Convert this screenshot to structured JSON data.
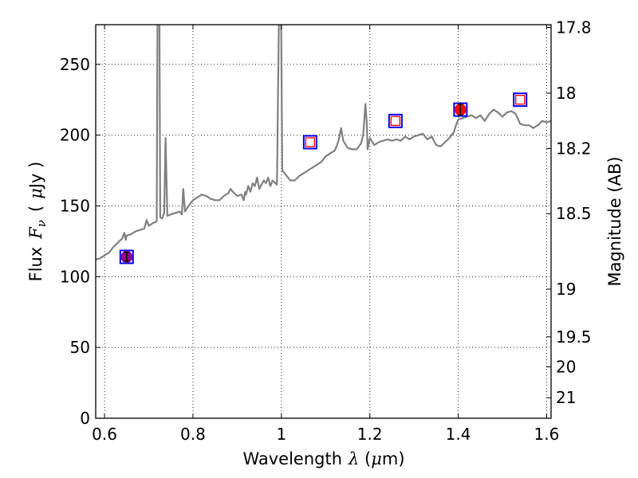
{
  "chart_data": {
    "type": "line",
    "xlabel": "Wavelength",
    "xlabel_symbol": "λ",
    "xlabel_unit_open": " (",
    "xlabel_unit_mu": "μ",
    "xlabel_unit_rest": "m)",
    "ylabel": "Flux",
    "ylabel_symbol_main": "F",
    "ylabel_symbol_sub": "ν",
    "ylabel_unit_open": "(",
    "ylabel_unit_mu": "μ",
    "ylabel_unit_rest": "Jy )",
    "y2label": "Magnitude (AB)",
    "xlim": [
      0.58,
      1.61
    ],
    "ylim": [
      0,
      278
    ],
    "grid": true,
    "x_ticks": [
      0.6,
      0.8,
      1.0,
      1.2,
      1.4,
      1.6
    ],
    "x_tick_labels": [
      "0.6",
      "0.8",
      "1",
      "1.2",
      "1.4",
      "1.6"
    ],
    "y_ticks": [
      0,
      50,
      100,
      150,
      200,
      250
    ],
    "y_tick_labels": [
      "0",
      "50",
      "100",
      "150",
      "200",
      "250"
    ],
    "y2_ticks": [
      {
        "label": "17.8",
        "flux": 276.0
      },
      {
        "label": "18",
        "flux": 229.6
      },
      {
        "label": "18.2",
        "flux": 190.5
      },
      {
        "label": "18.5",
        "flux": 144.5
      },
      {
        "label": "19",
        "flux": 91.2
      },
      {
        "label": "19.5",
        "flux": 57.5
      },
      {
        "label": "20",
        "flux": 36.3
      },
      {
        "label": "21",
        "flux": 14.5
      }
    ],
    "spectrum_color": "#808080",
    "spectrum": [
      [
        0.58,
        112
      ],
      [
        0.59,
        113
      ],
      [
        0.6,
        115
      ],
      [
        0.61,
        117
      ],
      [
        0.62,
        121
      ],
      [
        0.63,
        124
      ],
      [
        0.64,
        127
      ],
      [
        0.645,
        131
      ],
      [
        0.648,
        126
      ],
      [
        0.65,
        129
      ],
      [
        0.66,
        130
      ],
      [
        0.67,
        132
      ],
      [
        0.68,
        133
      ],
      [
        0.69,
        134
      ],
      [
        0.695,
        140
      ],
      [
        0.7,
        136
      ],
      [
        0.71,
        138
      ],
      [
        0.718,
        139
      ],
      [
        0.72,
        300
      ],
      [
        0.724,
        300
      ],
      [
        0.726,
        142
      ],
      [
        0.73,
        141
      ],
      [
        0.735,
        145
      ],
      [
        0.738,
        198
      ],
      [
        0.742,
        143
      ],
      [
        0.75,
        144
      ],
      [
        0.76,
        145
      ],
      [
        0.77,
        146
      ],
      [
        0.775,
        144
      ],
      [
        0.778,
        162
      ],
      [
        0.782,
        146
      ],
      [
        0.79,
        150
      ],
      [
        0.8,
        154
      ],
      [
        0.81,
        156
      ],
      [
        0.82,
        158
      ],
      [
        0.83,
        157
      ],
      [
        0.84,
        155
      ],
      [
        0.85,
        154
      ],
      [
        0.86,
        154
      ],
      [
        0.87,
        157
      ],
      [
        0.88,
        159
      ],
      [
        0.885,
        162
      ],
      [
        0.89,
        160
      ],
      [
        0.9,
        157
      ],
      [
        0.91,
        158
      ],
      [
        0.915,
        154
      ],
      [
        0.918,
        160
      ],
      [
        0.92,
        158
      ],
      [
        0.925,
        164
      ],
      [
        0.93,
        160
      ],
      [
        0.935,
        166
      ],
      [
        0.94,
        164
      ],
      [
        0.945,
        170
      ],
      [
        0.95,
        162
      ],
      [
        0.96,
        168
      ],
      [
        0.965,
        166
      ],
      [
        0.97,
        170
      ],
      [
        0.975,
        164
      ],
      [
        0.98,
        168
      ],
      [
        0.99,
        165
      ],
      [
        0.995,
        300
      ],
      [
        0.999,
        300
      ],
      [
        1.002,
        175
      ],
      [
        1.01,
        172
      ],
      [
        1.02,
        168
      ],
      [
        1.03,
        168
      ],
      [
        1.04,
        171
      ],
      [
        1.05,
        173
      ],
      [
        1.06,
        175
      ],
      [
        1.07,
        177
      ],
      [
        1.08,
        179
      ],
      [
        1.09,
        181
      ],
      [
        1.1,
        185
      ],
      [
        1.11,
        187
      ],
      [
        1.12,
        189
      ],
      [
        1.125,
        192
      ],
      [
        1.13,
        197
      ],
      [
        1.135,
        205
      ],
      [
        1.14,
        196
      ],
      [
        1.15,
        191
      ],
      [
        1.16,
        190
      ],
      [
        1.17,
        190
      ],
      [
        1.18,
        194
      ],
      [
        1.185,
        200
      ],
      [
        1.19,
        222
      ],
      [
        1.193,
        210
      ],
      [
        1.195,
        190
      ],
      [
        1.2,
        198
      ],
      [
        1.21,
        193
      ],
      [
        1.22,
        195
      ],
      [
        1.23,
        196
      ],
      [
        1.24,
        197
      ],
      [
        1.25,
        196
      ],
      [
        1.26,
        197
      ],
      [
        1.27,
        196
      ],
      [
        1.28,
        199
      ],
      [
        1.29,
        197
      ],
      [
        1.3,
        199
      ],
      [
        1.31,
        200
      ],
      [
        1.32,
        201
      ],
      [
        1.33,
        197
      ],
      [
        1.34,
        199
      ],
      [
        1.35,
        193
      ],
      [
        1.36,
        192
      ],
      [
        1.37,
        195
      ],
      [
        1.38,
        198
      ],
      [
        1.39,
        202
      ],
      [
        1.395,
        207
      ],
      [
        1.4,
        211
      ],
      [
        1.41,
        212
      ],
      [
        1.42,
        213
      ],
      [
        1.43,
        214
      ],
      [
        1.44,
        212
      ],
      [
        1.45,
        214
      ],
      [
        1.46,
        210
      ],
      [
        1.47,
        215
      ],
      [
        1.48,
        218
      ],
      [
        1.49,
        216
      ],
      [
        1.5,
        213
      ],
      [
        1.51,
        216
      ],
      [
        1.52,
        217
      ],
      [
        1.53,
        215
      ],
      [
        1.54,
        208
      ],
      [
        1.55,
        207
      ],
      [
        1.56,
        207
      ],
      [
        1.57,
        205
      ],
      [
        1.58,
        207
      ],
      [
        1.59,
        210
      ],
      [
        1.6,
        209
      ],
      [
        1.61,
        210
      ]
    ],
    "points": [
      {
        "name": "filled-circle-purple",
        "x": 0.65,
        "y": 114,
        "marker": "circle",
        "color": "#8b008b",
        "box_color": "#0000ff",
        "err": 3
      },
      {
        "name": "open-square-red",
        "x": 1.065,
        "y": 195,
        "marker": "open-square",
        "color": "#ff0000",
        "box_color": "#0000ff"
      },
      {
        "name": "open-square-red",
        "x": 1.258,
        "y": 210,
        "marker": "open-square",
        "color": "#ff0000",
        "box_color": "#0000ff"
      },
      {
        "name": "filled-circle-red",
        "x": 1.405,
        "y": 218,
        "marker": "circle",
        "color": "#ff0000",
        "box_color": "#0000ff",
        "err": 4
      },
      {
        "name": "open-square-red",
        "x": 1.54,
        "y": 225,
        "marker": "open-square",
        "color": "#ff0000",
        "box_color": "#0000ff"
      }
    ]
  }
}
